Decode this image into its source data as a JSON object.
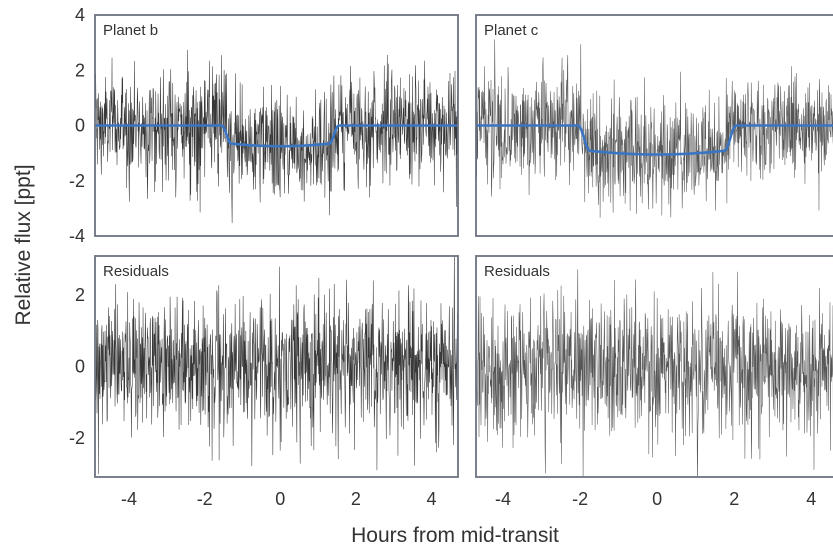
{
  "chart_data": [
    {
      "type": "line",
      "panel": "top-left",
      "title": "Planet b",
      "xlim": [
        -4.9,
        4.7
      ],
      "ylim": [
        -4,
        4
      ],
      "x_ticks": [
        -4,
        -2,
        0,
        2,
        4
      ],
      "x_tick_labels": [],
      "y_ticks": [
        -4,
        -2,
        0,
        2,
        4
      ],
      "y_tick_labels": [
        "-4",
        "-2",
        "0",
        "2",
        "4"
      ],
      "series": [
        {
          "kind": "data",
          "noise_sd": 1.0,
          "color": "#222222"
        },
        {
          "kind": "model",
          "color": "#3a75c4",
          "depth": 0.75,
          "t14_half": 1.55,
          "ingress": 0.25
        }
      ]
    },
    {
      "type": "line",
      "panel": "top-right",
      "title": "Planet c",
      "xlim": [
        -4.7,
        4.9
      ],
      "ylim": [
        -4,
        4
      ],
      "x_ticks": [
        -4,
        -2,
        0,
        2,
        4
      ],
      "x_tick_labels": [],
      "y_ticks": [
        -4,
        -2,
        0,
        2,
        4
      ],
      "y_tick_labels": [],
      "series": [
        {
          "kind": "data",
          "noise_sd": 1.0,
          "color": "#444444"
        },
        {
          "kind": "model",
          "color": "#3a75c4",
          "depth": 1.05,
          "t14_half": 2.05,
          "ingress": 0.3
        }
      ]
    },
    {
      "type": "line",
      "panel": "bottom-left",
      "title": "Residuals",
      "xlim": [
        -4.9,
        4.7
      ],
      "ylim": [
        -3.1,
        3.1
      ],
      "x_ticks": [
        -4,
        -2,
        0,
        2,
        4
      ],
      "x_tick_labels": [
        "-4",
        "-2",
        "0",
        "2",
        "4"
      ],
      "y_ticks": [
        -2,
        0,
        2
      ],
      "y_tick_labels": [
        "-2",
        "0",
        "2"
      ],
      "series": [
        {
          "kind": "data",
          "noise_sd": 1.0,
          "color": "#222222"
        }
      ]
    },
    {
      "type": "line",
      "panel": "bottom-right",
      "title": "Residuals",
      "xlim": [
        -4.7,
        4.9
      ],
      "ylim": [
        -3.1,
        3.1
      ],
      "x_ticks": [
        -4,
        -2,
        0,
        2,
        4
      ],
      "x_tick_labels": [
        "-4",
        "-2",
        "0",
        "2",
        "4"
      ],
      "y_ticks": [
        -2,
        0,
        2
      ],
      "y_tick_labels": [],
      "series": [
        {
          "kind": "data",
          "noise_sd": 1.0,
          "color": "#444444"
        }
      ]
    }
  ],
  "axes": {
    "xlabel": "Hours from mid-transit",
    "ylabel": "Relative flux [ppt]"
  },
  "colors": {
    "frame": "#6b7280",
    "model": "#3a75c4",
    "text": "#333333"
  }
}
